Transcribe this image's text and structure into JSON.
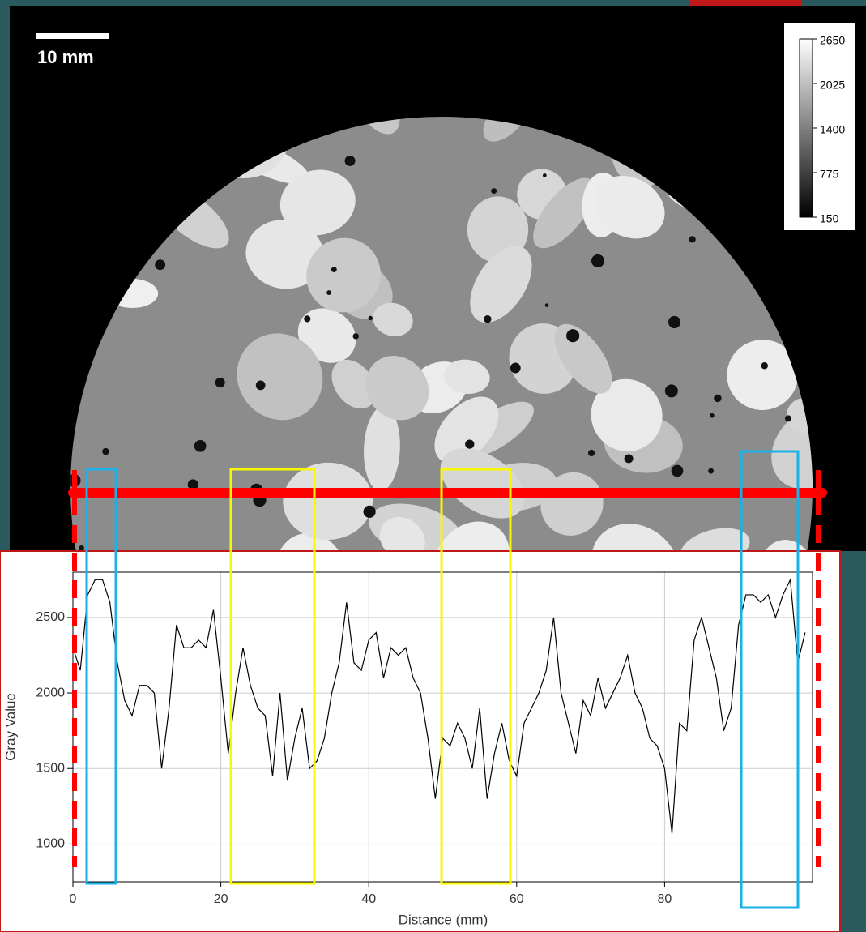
{
  "chart_data": {
    "type": "line",
    "xlabel": "Distance (mm)",
    "ylabel": "Gray Value",
    "scale_bar_label": "10 mm",
    "colorbar_ticks": [
      2650,
      2025,
      1400,
      775,
      150
    ],
    "x": [
      0,
      1,
      2,
      3,
      4,
      5,
      6,
      7,
      8,
      9,
      10,
      11,
      12,
      13,
      14,
      15,
      16,
      17,
      18,
      19,
      20,
      21,
      22,
      23,
      24,
      25,
      26,
      27,
      28,
      29,
      30,
      31,
      32,
      33,
      34,
      35,
      36,
      37,
      38,
      39,
      40,
      41,
      42,
      43,
      44,
      45,
      46,
      47,
      48,
      49,
      50,
      51,
      52,
      53,
      54,
      55,
      56,
      57,
      58,
      59,
      60,
      61,
      62,
      63,
      64,
      65,
      66,
      67,
      68,
      69,
      70,
      71,
      72,
      73,
      74,
      75,
      76,
      77,
      78,
      79,
      80,
      81,
      82,
      83,
      84,
      85,
      86,
      87,
      88,
      89,
      90,
      91,
      92,
      93,
      94,
      95,
      96,
      97,
      98,
      99
    ],
    "series": [
      {
        "color": "#000000",
        "values": [
          2300,
          2150,
          2650,
          2750,
          2750,
          2600,
          2200,
          1950,
          1850,
          2050,
          2050,
          2000,
          1500,
          1900,
          2450,
          2300,
          2300,
          2350,
          2300,
          2550,
          2100,
          1600,
          2000,
          2300,
          2050,
          1900,
          1850,
          1450,
          2000,
          1420,
          1700,
          1900,
          1500,
          1550,
          1700,
          2000,
          2200,
          2600,
          2200,
          2150,
          2350,
          2400,
          2100,
          2300,
          2250,
          2300,
          2100,
          2000,
          1700,
          1300,
          1700,
          1650,
          1800,
          1700,
          1500,
          1900,
          1300,
          1600,
          1800,
          1550,
          1450,
          1800,
          1900,
          2000,
          2150,
          2500,
          2000,
          1800,
          1600,
          1950,
          1850,
          2100,
          1900,
          2000,
          2100,
          2250,
          2000,
          1900,
          1700,
          1650,
          1500,
          1070,
          1800,
          1750,
          2350,
          2500,
          2300,
          2100,
          1750,
          1900,
          2450,
          2650,
          2650,
          2600,
          2650,
          2500,
          2650,
          2750,
          2200,
          2400
        ]
      }
    ],
    "xlim": [
      0,
      100
    ],
    "ylim": [
      750,
      2800
    ],
    "xticks": [
      0,
      20,
      40,
      60,
      80
    ],
    "yticks": [
      1000,
      1500,
      2000,
      2500
    ],
    "grid": true
  }
}
